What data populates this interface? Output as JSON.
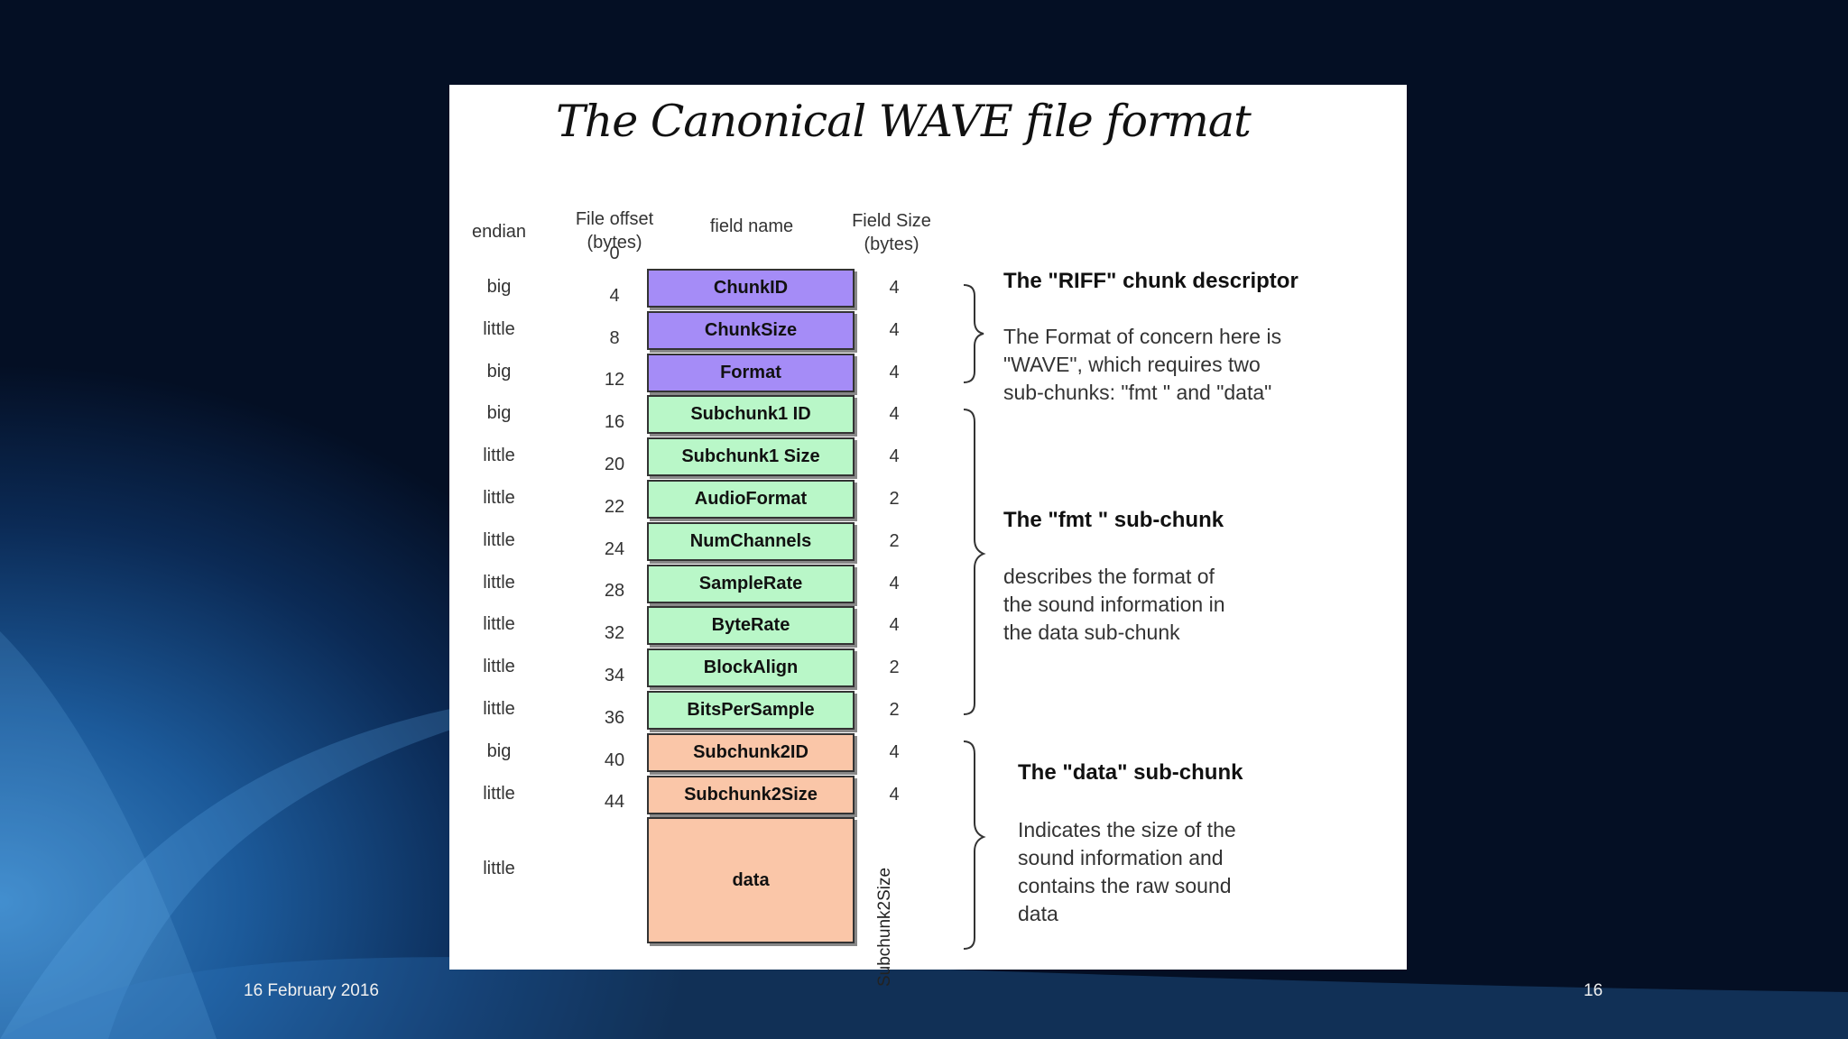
{
  "diagram": {
    "title": "The Canonical WAVE file format",
    "headers": {
      "endian": "endian",
      "offset_line1": "File offset",
      "offset_line2": "(bytes)",
      "field_name": "field name",
      "size_line1": "Field Size",
      "size_line2": "(bytes)"
    },
    "fields": [
      {
        "endian": "big",
        "name": "ChunkID",
        "size": "4",
        "group": "riff"
      },
      {
        "endian": "little",
        "name": "ChunkSize",
        "size": "4",
        "group": "riff"
      },
      {
        "endian": "big",
        "name": "Format",
        "size": "4",
        "group": "riff"
      },
      {
        "endian": "big",
        "name": "Subchunk1 ID",
        "size": "4",
        "group": "fmt"
      },
      {
        "endian": "little",
        "name": "Subchunk1 Size",
        "size": "4",
        "group": "fmt"
      },
      {
        "endian": "little",
        "name": "AudioFormat",
        "size": "2",
        "group": "fmt"
      },
      {
        "endian": "little",
        "name": "NumChannels",
        "size": "2",
        "group": "fmt"
      },
      {
        "endian": "little",
        "name": "SampleRate",
        "size": "4",
        "group": "fmt"
      },
      {
        "endian": "little",
        "name": "ByteRate",
        "size": "4",
        "group": "fmt"
      },
      {
        "endian": "little",
        "name": "BlockAlign",
        "size": "2",
        "group": "fmt"
      },
      {
        "endian": "little",
        "name": "BitsPerSample",
        "size": "2",
        "group": "fmt"
      },
      {
        "endian": "big",
        "name": "Subchunk2ID",
        "size": "4",
        "group": "data"
      },
      {
        "endian": "little",
        "name": "Subchunk2Size",
        "size": "4",
        "group": "data"
      },
      {
        "endian": "little",
        "name": "data",
        "size": "Subchunk2Size",
        "group": "data"
      }
    ],
    "offsets": [
      "0",
      "4",
      "8",
      "12",
      "16",
      "20",
      "22",
      "24",
      "28",
      "32",
      "34",
      "36",
      "40",
      "44"
    ],
    "group_colors": {
      "riff": "#a58cf7",
      "fmt": "#b9f7c8",
      "data": "#fac6a8"
    },
    "descriptions": {
      "riff": {
        "title": "The \"RIFF\" chunk descriptor",
        "body": "The Format of concern here is\n\"WAVE\", which requires two\nsub-chunks: \"fmt \" and \"data\""
      },
      "fmt": {
        "title": "The \"fmt \" sub-chunk",
        "body": "describes the format of\nthe sound information in\nthe data sub-chunk"
      },
      "data": {
        "title": "The \"data\" sub-chunk",
        "body": "Indicates the size of the\nsound information and\ncontains the raw sound\ndata"
      }
    }
  },
  "footer": {
    "date": "16 February 2016",
    "page": "16"
  }
}
